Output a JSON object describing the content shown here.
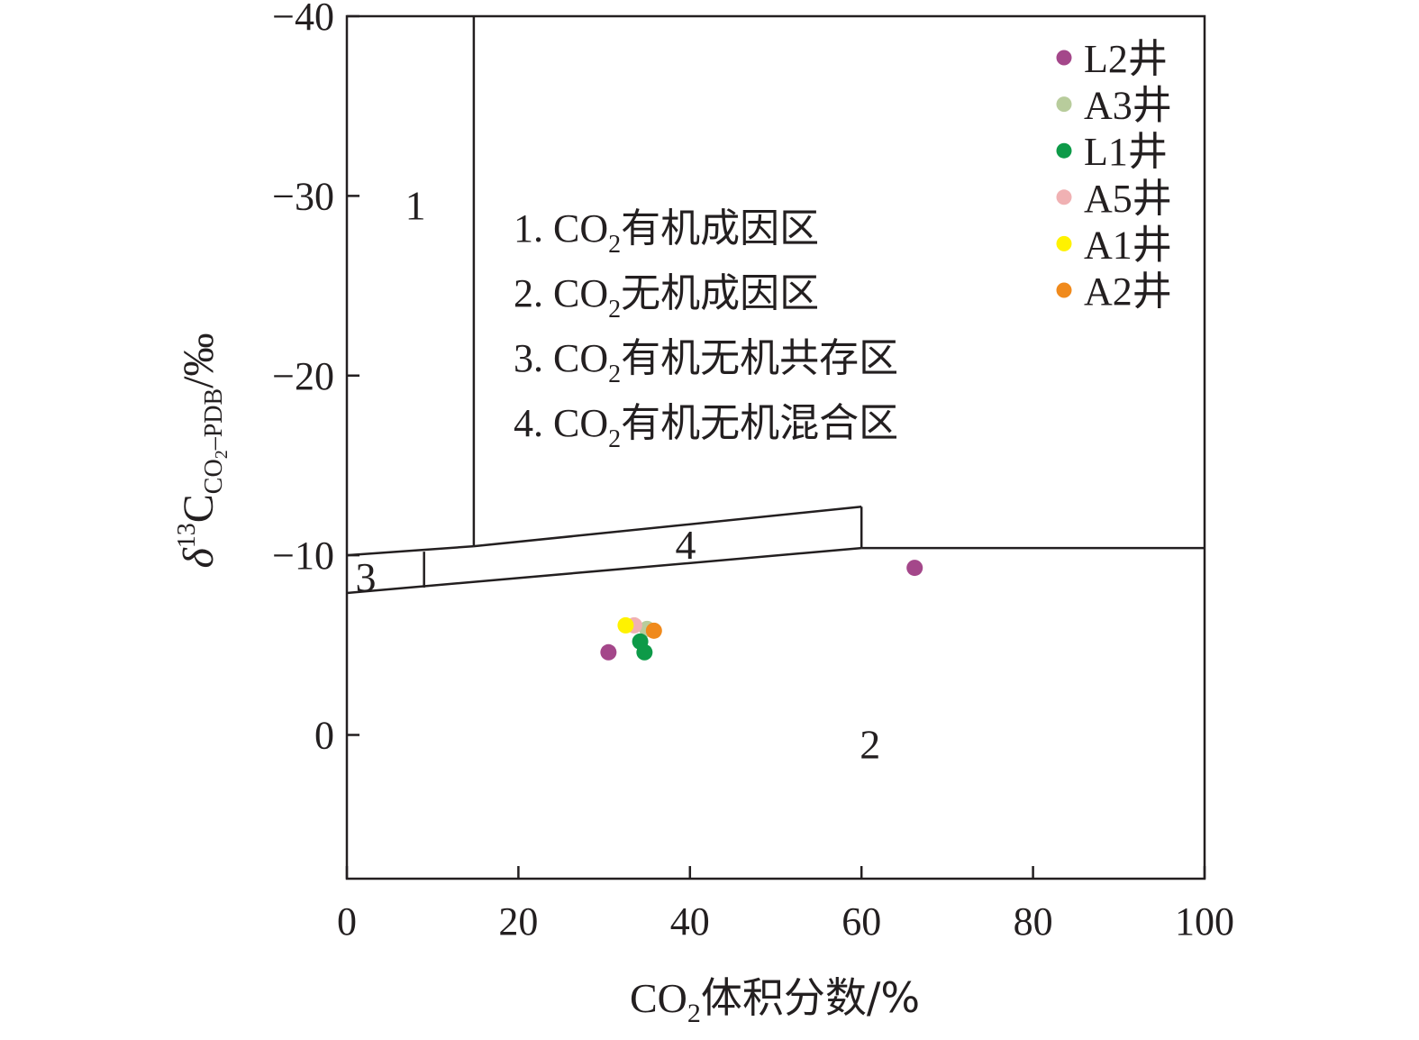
{
  "chart_data": {
    "type": "scatter",
    "xlabel": {
      "main": "CO",
      "sub": "2",
      "rest": "体积分数/%"
    },
    "ylabel": {
      "delta": "δ",
      "sup": "13",
      "c": "C",
      "sub1": "CO",
      "sub2": "2",
      "sub3": "–PDB",
      "unit": "/‰"
    },
    "xlim": [
      0,
      100
    ],
    "ylim": [
      -40,
      8
    ],
    "y_inverted": true,
    "x_ticks": [
      0,
      20,
      40,
      60,
      80,
      100
    ],
    "y_ticks": [
      -40,
      -30,
      -20,
      -10,
      0
    ],
    "y_tick_labels": [
      "−40",
      "−30",
      "−20",
      "−10",
      "0"
    ],
    "grid": false,
    "legend_position": "top-right",
    "series": [
      {
        "name": "L2井",
        "color": "#a4478a",
        "points": [
          [
            66.2,
            -9.3
          ],
          [
            30.5,
            -4.6
          ]
        ]
      },
      {
        "name": "A3井",
        "color": "#b8cc9c",
        "points": [
          [
            35.0,
            -5.9
          ]
        ]
      },
      {
        "name": "L1井",
        "color": "#0d9a48",
        "points": [
          [
            34.2,
            -5.2
          ],
          [
            34.7,
            -4.6
          ]
        ]
      },
      {
        "name": "A5井",
        "color": "#f0b1b3",
        "points": [
          [
            33.5,
            -6.1
          ]
        ]
      },
      {
        "name": "A1井",
        "color": "#fff200",
        "points": [
          [
            32.5,
            -6.1
          ]
        ]
      },
      {
        "name": "A2井",
        "color": "#f08a1c",
        "points": [
          [
            35.8,
            -5.8
          ]
        ]
      }
    ],
    "region_labels": [
      {
        "text": "1",
        "x": 8,
        "y": -29.5
      },
      {
        "text": "2",
        "x": 61,
        "y": 0.5
      },
      {
        "text": "3",
        "x": 2.2,
        "y": -8.8
      },
      {
        "text": "4",
        "x": 39.5,
        "y": -10.6
      }
    ],
    "boundaries": [
      [
        [
          14.8,
          -40
        ],
        [
          14.8,
          -10.5
        ]
      ],
      [
        [
          14.8,
          -10.5
        ],
        [
          60,
          -12.7
        ]
      ],
      [
        [
          60,
          -12.7
        ],
        [
          60,
          -10.4
        ]
      ],
      [
        [
          60,
          -10.4
        ],
        [
          100,
          -10.4
        ]
      ],
      [
        [
          0,
          -10
        ],
        [
          14.8,
          -10.5
        ]
      ],
      [
        [
          0,
          -7.9
        ],
        [
          60,
          -10.4
        ]
      ],
      [
        [
          9,
          -10.2
        ],
        [
          9,
          -8.2
        ]
      ]
    ],
    "zone_notes": [
      {
        "prefix": "1. CO",
        "sub": "2",
        "suffix": "有机成因区"
      },
      {
        "prefix": "2. CO",
        "sub": "2",
        "suffix": "无机成因区"
      },
      {
        "prefix": "3. CO",
        "sub": "2",
        "suffix": "有机无机共存区"
      },
      {
        "prefix": "4. CO",
        "sub": "2",
        "suffix": "有机无机混合区"
      }
    ]
  }
}
